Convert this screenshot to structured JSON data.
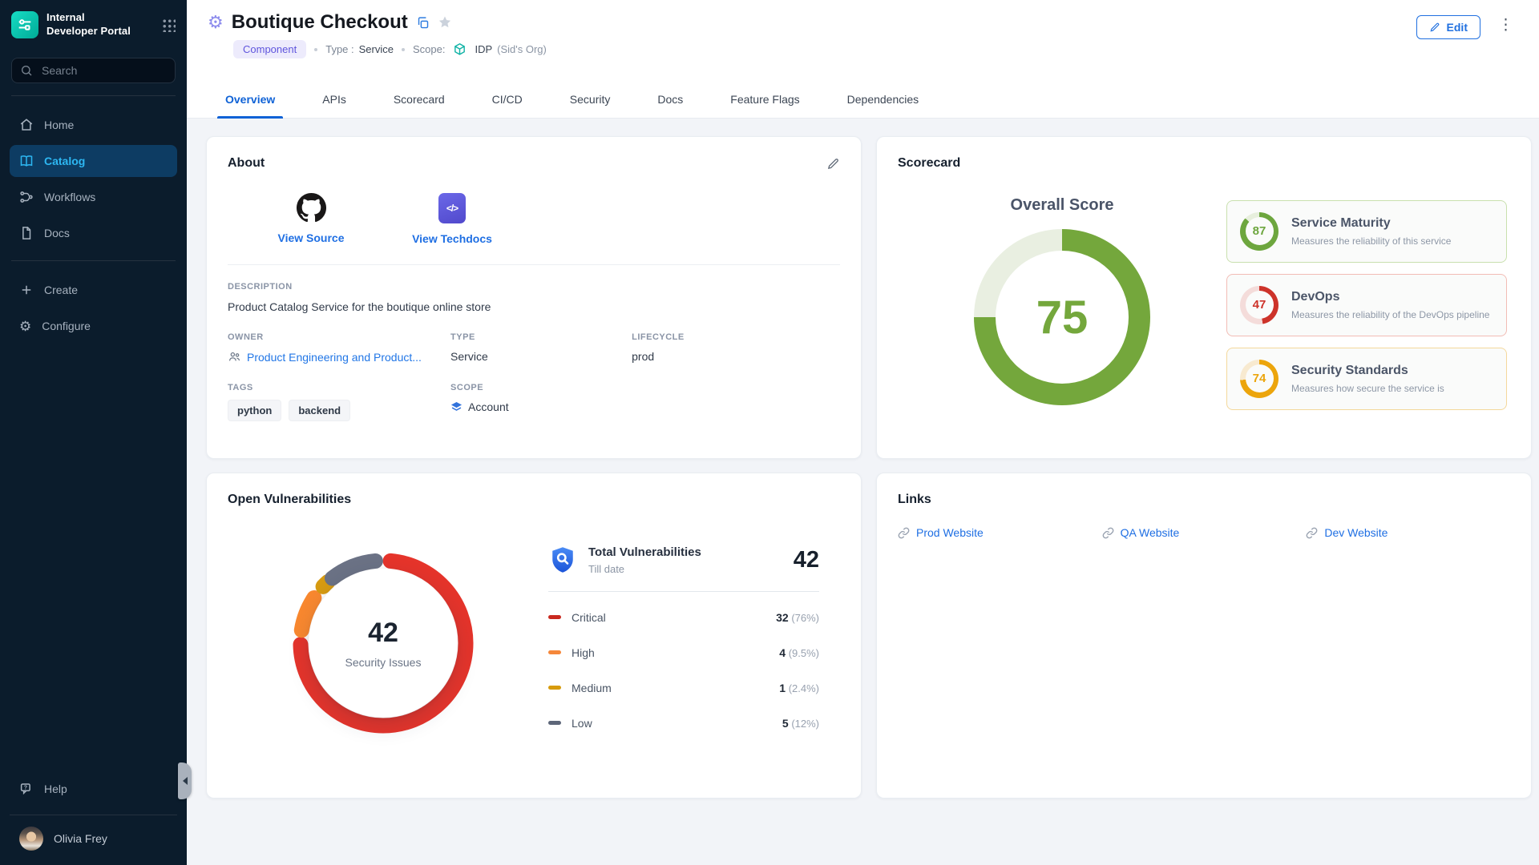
{
  "sidebar": {
    "logo": {
      "line1": "Internal",
      "line2": "Developer Portal"
    },
    "search_placeholder": "Search",
    "nav": [
      {
        "label": "Home"
      },
      {
        "label": "Catalog"
      },
      {
        "label": "Workflows"
      },
      {
        "label": "Docs"
      }
    ],
    "actions": [
      {
        "label": "Create"
      },
      {
        "label": "Configure"
      }
    ],
    "help_label": "Help",
    "user_name": "Olivia Frey"
  },
  "header": {
    "title": "Boutique Checkout",
    "badge": "Component",
    "type_label": "Type :",
    "type_value": "Service",
    "scope_label": "Scope:",
    "scope_value": "IDP",
    "scope_org": "(Sid's Org)",
    "edit_label": "Edit"
  },
  "tabs": [
    "Overview",
    "APIs",
    "Scorecard",
    "CI/CD",
    "Security",
    "Docs",
    "Feature Flags",
    "Dependencies"
  ],
  "about": {
    "heading": "About",
    "source_link": "View Source",
    "techdocs_link": "View Techdocs",
    "description_label": "DESCRIPTION",
    "description": "Product Catalog Service for the boutique online store",
    "owner_label": "OWNER",
    "owner": "Product Engineering and Product...",
    "type_label": "TYPE",
    "type": "Service",
    "lifecycle_label": "LIFECYCLE",
    "lifecycle": "prod",
    "tags_label": "TAGS",
    "tags": [
      "python",
      "backend"
    ],
    "scope_label": "SCOPE",
    "scope": "Account"
  },
  "scorecard": {
    "heading": "Scorecard",
    "overall_label": "Overall Score",
    "overall": {
      "score": 75,
      "color": "#74a73c",
      "track": "#e9efe1"
    },
    "items": [
      {
        "title": "Service Maturity",
        "desc": "Measures the reliability of this service",
        "score": 87,
        "color": "#6da63e",
        "track": "#e7efdd",
        "border": "#c9e0ae"
      },
      {
        "title": "DevOps",
        "desc": "Measures the reliability of the DevOps pipeline",
        "score": 47,
        "color": "#cd332a",
        "track": "#f4dcda",
        "border": "#f2bcb5"
      },
      {
        "title": "Security Standards",
        "desc": "Measures how secure the service is",
        "score": 74,
        "color": "#eca50c",
        "track": "#f8ead0",
        "border": "#f4d89c"
      }
    ]
  },
  "vulnerabilities": {
    "heading": "Open Vulnerabilities",
    "center_value": "42",
    "center_label": "Security Issues",
    "total_title": "Total Vulnerabilities",
    "total_sub": "Till date",
    "total_value": "42",
    "breakdown": [
      {
        "label": "Critical",
        "count": 32,
        "pct": "(76%)",
        "color": "#c9291f",
        "arc_color": "#e5342b"
      },
      {
        "label": "High",
        "count": 4,
        "pct": "(9.5%)",
        "color": "#f5873a",
        "arc_color": "#f9882f"
      },
      {
        "label": "Medium",
        "count": 1,
        "pct": "(2.4%)",
        "color": "#d79b0c",
        "arc_color": "#d79b11"
      },
      {
        "label": "Low",
        "count": 5,
        "pct": "(12%)",
        "color": "#5d6679",
        "arc_color": "#6b7285"
      }
    ]
  },
  "links": {
    "heading": "Links",
    "items": [
      {
        "label": "Prod Website"
      },
      {
        "label": "QA Website"
      },
      {
        "label": "Dev Website"
      }
    ]
  }
}
